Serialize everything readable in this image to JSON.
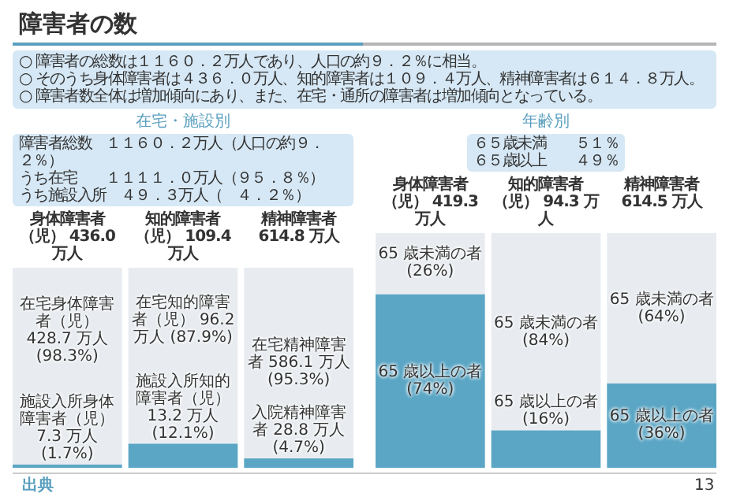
{
  "chart_data": [
    {
      "type": "other",
      "title": "障害者の数",
      "annotations": [
        "○ 障害者の総数は１１６０．２万人であり、人口の約９．２％に相当。",
        "○ そのうち身体障害者は４３６．０万人、知的障害者は１０９．４万人、精神障害者は６１４．８万人。",
        "○ 障害者数全体は増加傾向にあり、また、在宅・通所の障害者は増加傾向となっている。",
        "出典",
        "13"
      ]
    },
    {
      "type": "bar",
      "stacked": true,
      "title": "在宅・施設別",
      "annotations": [
        "障害者総数　１１６０．２万人（人口の約９．２％）",
        "うち在宅　　１１１１．０万人（９５．８％）",
        "うち施設入所　４９．３万人（　４．２％）"
      ],
      "categories": [
        "身体障害者（児） 436.0 万人",
        "知的障害者（児） 109.4 万人",
        "精神障害者 614.8 万人"
      ],
      "series": [
        {
          "color": "#5ba6c5",
          "values": [
            1.7,
            12.1,
            4.7
          ],
          "value_labels": [
            "施設入所身体障害者（児） 7.3 万人 (1.7%)",
            "施設入所知的障害者（児） 13.2 万人 (12.1%)",
            "入院精神障害者 28.8 万人 (4.7%)"
          ]
        },
        {
          "color": "#e8ecf0",
          "values": [
            98.3,
            87.9,
            95.3
          ],
          "value_labels": [
            "在宅身体障害者（児） 428.7 万人 (98.3%)",
            "在宅知的障害者（児） 96.2 万人 (87.9%)",
            "在宅精神障害者 586.1 万人 (95.3%)"
          ]
        }
      ]
    },
    {
      "type": "bar",
      "stacked": true,
      "title": "年齢別",
      "annotations": [
        "６５歳未満　　５１％",
        "６５歳以上　　４９％"
      ],
      "categories": [
        "身体障害者（児） 419.3 万人",
        "知的障害者（児） 94.3 万人",
        "精神障害者 614.5 万人"
      ],
      "series": [
        {
          "color": "#5ba6c5",
          "values": [
            74,
            16,
            36
          ],
          "value_labels": [
            "65 歳以上の者 (74%)",
            "65 歳以上の者 (16%)",
            "65 歳以上の者 (36%)"
          ]
        },
        {
          "color": "#e8ecf0",
          "values": [
            26,
            84,
            64
          ],
          "value_labels": [
            "65 歳未満の者 (26%)",
            "65 歳未満の者 (84%)",
            "65 歳未満の者 (64%)"
          ]
        }
      ]
    }
  ]
}
